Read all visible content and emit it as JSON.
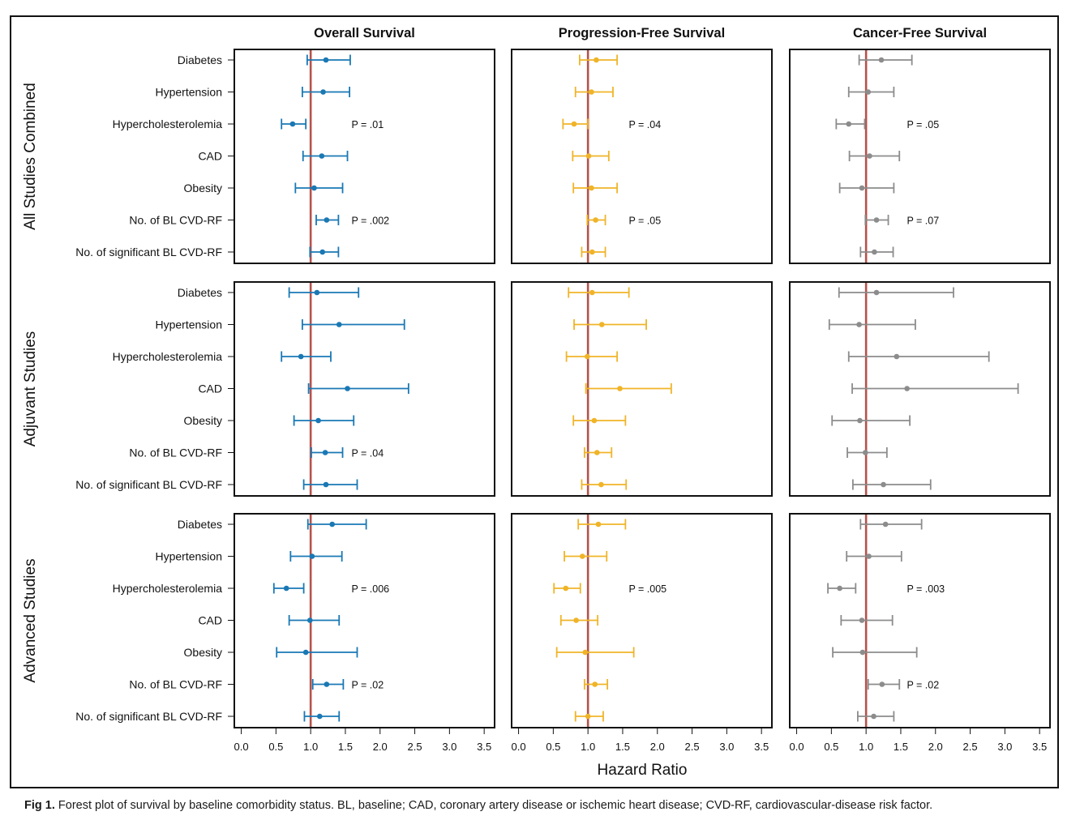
{
  "figure": {
    "caption_label": "Fig 1.",
    "caption_text": "Forest plot of survival by baseline comorbidity status. BL, baseline; CAD, coronary artery disease or ischemic heart disease; CVD-RF, cardiovascular-disease risk factor."
  },
  "chart_data": {
    "type": "forest",
    "xlabel": "Hazard Ratio",
    "xlim": [
      -0.1,
      3.65
    ],
    "xticks": [
      "0.0",
      "0.5",
      "1.0",
      "1.5",
      "2.0",
      "2.5",
      "3.0",
      "3.5"
    ],
    "reference_line": 1.0,
    "grid": false,
    "row_labels": [
      "Diabetes",
      "Hypertension",
      "Hypercholesterolemia",
      "CAD",
      "Obesity",
      "No. of BL CVD-RF",
      "No. of significant BL CVD-RF"
    ],
    "columns": [
      {
        "title": "Overall Survival",
        "color": "#1a78b4"
      },
      {
        "title": "Progression-Free Survival",
        "color": "#f0b428"
      },
      {
        "title": "Cancer-Free Survival",
        "color": "#8c8c8c"
      }
    ],
    "reference_line_color": "#b5524c",
    "sections": [
      {
        "label": "All Studies Combined",
        "panels": [
          {
            "hr": [
              1.22,
              1.18,
              0.74,
              1.16,
              1.05,
              1.23,
              1.17
            ],
            "lo": [
              0.95,
              0.88,
              0.58,
              0.89,
              0.78,
              1.08,
              0.99
            ],
            "hi": [
              1.57,
              1.56,
              0.93,
              1.53,
              1.46,
              1.4,
              1.4
            ],
            "p": [
              null,
              null,
              "P = .01",
              null,
              null,
              "P = .002",
              null
            ]
          },
          {
            "hr": [
              1.12,
              1.05,
              0.8,
              1.01,
              1.05,
              1.11,
              1.06
            ],
            "lo": [
              0.88,
              0.82,
              0.64,
              0.78,
              0.79,
              0.99,
              0.91
            ],
            "hi": [
              1.42,
              1.36,
              1.0,
              1.3,
              1.42,
              1.25,
              1.25
            ],
            "p": [
              null,
              null,
              "P = .04",
              null,
              null,
              "P = .05",
              null
            ]
          },
          {
            "hr": [
              1.22,
              1.03,
              0.75,
              1.05,
              0.94,
              1.15,
              1.12
            ],
            "lo": [
              0.9,
              0.75,
              0.57,
              0.76,
              0.62,
              0.99,
              0.92
            ],
            "hi": [
              1.66,
              1.4,
              0.98,
              1.48,
              1.4,
              1.32,
              1.39
            ],
            "p": [
              null,
              null,
              "P = .05",
              null,
              null,
              "P = .07",
              null
            ]
          }
        ]
      },
      {
        "label": "Adjuvant Studies",
        "panels": [
          {
            "hr": [
              1.09,
              1.41,
              0.86,
              1.53,
              1.11,
              1.21,
              1.22
            ],
            "lo": [
              0.69,
              0.88,
              0.58,
              0.97,
              0.76,
              1.01,
              0.9
            ],
            "hi": [
              1.69,
              2.35,
              1.29,
              2.41,
              1.62,
              1.46,
              1.67
            ],
            "p": [
              null,
              null,
              null,
              null,
              null,
              "P = .04",
              null
            ]
          },
          {
            "hr": [
              1.06,
              1.2,
              0.99,
              1.46,
              1.09,
              1.13,
              1.19
            ],
            "lo": [
              0.72,
              0.8,
              0.69,
              0.97,
              0.79,
              0.95,
              0.91
            ],
            "hi": [
              1.59,
              1.84,
              1.42,
              2.2,
              1.54,
              1.34,
              1.55
            ],
            "p": [
              null,
              null,
              null,
              null,
              null,
              null,
              null
            ]
          },
          {
            "hr": [
              1.15,
              0.9,
              1.44,
              1.59,
              0.91,
              0.99,
              1.25
            ],
            "lo": [
              0.61,
              0.47,
              0.75,
              0.8,
              0.51,
              0.73,
              0.81
            ],
            "hi": [
              2.26,
              1.71,
              2.77,
              3.19,
              1.63,
              1.3,
              1.93
            ],
            "p": [
              null,
              null,
              null,
              null,
              null,
              null,
              null
            ]
          }
        ]
      },
      {
        "label": "Advanced Studies",
        "panels": [
          {
            "hr": [
              1.31,
              1.02,
              0.65,
              0.99,
              0.93,
              1.23,
              1.13
            ],
            "lo": [
              0.96,
              0.71,
              0.47,
              0.69,
              0.51,
              1.03,
              0.91
            ],
            "hi": [
              1.8,
              1.45,
              0.9,
              1.41,
              1.67,
              1.47,
              1.41
            ],
            "p": [
              null,
              null,
              "P = .006",
              null,
              null,
              "P = .02",
              null
            ]
          },
          {
            "hr": [
              1.15,
              0.92,
              0.68,
              0.83,
              0.96,
              1.1,
              1.0
            ],
            "lo": [
              0.86,
              0.66,
              0.51,
              0.61,
              0.55,
              0.95,
              0.82
            ],
            "hi": [
              1.54,
              1.27,
              0.89,
              1.14,
              1.66,
              1.28,
              1.22
            ],
            "p": [
              null,
              null,
              "P = .005",
              null,
              null,
              null,
              null
            ]
          },
          {
            "hr": [
              1.28,
              1.04,
              0.62,
              0.94,
              0.95,
              1.23,
              1.11
            ],
            "lo": [
              0.92,
              0.72,
              0.45,
              0.64,
              0.52,
              1.03,
              0.88
            ],
            "hi": [
              1.8,
              1.51,
              0.85,
              1.38,
              1.73,
              1.48,
              1.4
            ],
            "p": [
              null,
              null,
              "P = .003",
              null,
              null,
              "P = .02",
              null
            ]
          }
        ]
      }
    ]
  }
}
